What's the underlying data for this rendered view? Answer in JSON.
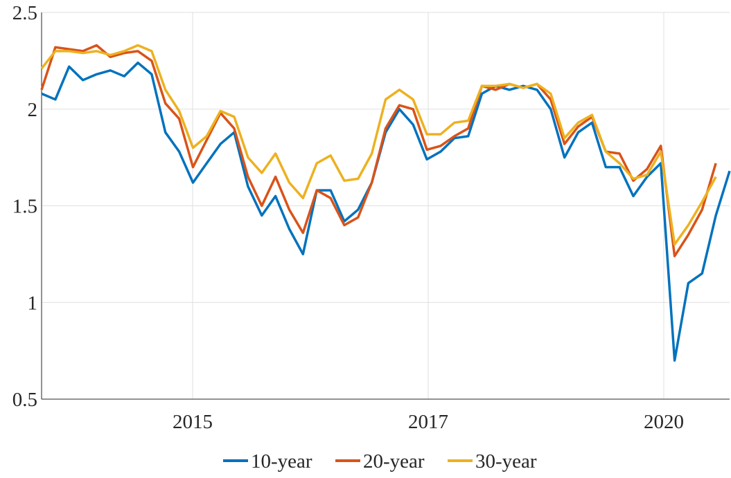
{
  "chart_data": {
    "type": "line",
    "x": [
      0,
      2,
      4,
      6,
      8,
      10,
      12,
      14,
      16,
      18,
      20,
      22,
      24,
      26,
      28,
      30,
      32,
      34,
      36,
      38,
      40,
      42,
      44,
      46,
      48,
      50,
      52,
      54,
      56,
      58,
      60,
      62,
      64,
      66,
      68,
      70,
      72,
      74,
      76,
      78,
      80,
      82,
      84,
      86,
      88,
      90,
      92,
      94,
      96,
      98,
      100
    ],
    "series": [
      {
        "name": "10-year",
        "color": "#0072bd",
        "values": [
          2.08,
          2.05,
          2.22,
          2.15,
          2.18,
          2.2,
          2.17,
          2.24,
          2.18,
          1.88,
          1.78,
          1.62,
          1.72,
          1.82,
          1.88,
          1.6,
          1.45,
          1.55,
          1.38,
          1.25,
          1.58,
          1.58,
          1.42,
          1.48,
          1.62,
          1.88,
          2.0,
          1.92,
          1.74,
          1.78,
          1.85,
          1.86,
          2.08,
          2.12,
          2.1,
          2.12,
          2.1,
          2.0,
          1.75,
          1.88,
          1.93,
          1.7,
          1.7,
          1.55,
          1.65,
          1.72,
          0.7,
          1.1,
          1.15,
          1.45,
          1.68
        ]
      },
      {
        "name": "20-year",
        "color": "#d95319",
        "values": [
          2.1,
          2.32,
          2.31,
          2.3,
          2.33,
          2.27,
          2.29,
          2.3,
          2.25,
          2.03,
          1.95,
          1.7,
          1.84,
          1.98,
          1.9,
          1.65,
          1.5,
          1.65,
          1.48,
          1.36,
          1.58,
          1.54,
          1.4,
          1.44,
          1.62,
          1.9,
          2.02,
          2.0,
          1.79,
          1.81,
          1.86,
          1.9,
          2.12,
          2.1,
          2.13,
          2.11,
          2.13,
          2.05,
          1.82,
          1.91,
          1.96,
          1.78,
          1.77,
          1.63,
          1.69,
          1.81,
          1.24,
          1.35,
          1.48,
          1.72,
          null
        ]
      },
      {
        "name": "30-year",
        "color": "#edb120",
        "values": [
          2.21,
          2.3,
          2.3,
          2.29,
          2.3,
          2.28,
          2.3,
          2.33,
          2.3,
          2.1,
          1.99,
          1.8,
          1.86,
          1.99,
          1.96,
          1.75,
          1.67,
          1.77,
          1.62,
          1.54,
          1.72,
          1.76,
          1.63,
          1.64,
          1.77,
          2.05,
          2.1,
          2.05,
          1.87,
          1.87,
          1.93,
          1.94,
          2.12,
          2.12,
          2.13,
          2.11,
          2.13,
          2.08,
          1.85,
          1.93,
          1.97,
          1.78,
          1.72,
          1.64,
          1.66,
          1.78,
          1.3,
          1.4,
          1.52,
          1.65,
          null
        ]
      }
    ],
    "xlim": [
      0,
      100
    ],
    "xticks": [
      {
        "value": 21.95,
        "label": "2015"
      },
      {
        "value": 56.19,
        "label": "2017"
      },
      {
        "value": 90.43,
        "label": "2020"
      }
    ],
    "ylim": [
      0.5,
      2.5
    ],
    "yticks": [
      0.5,
      1,
      {
        "value": 1.5,
        "label": "1.5"
      },
      2,
      2.5
    ],
    "grid": true,
    "legend": "bottom"
  }
}
